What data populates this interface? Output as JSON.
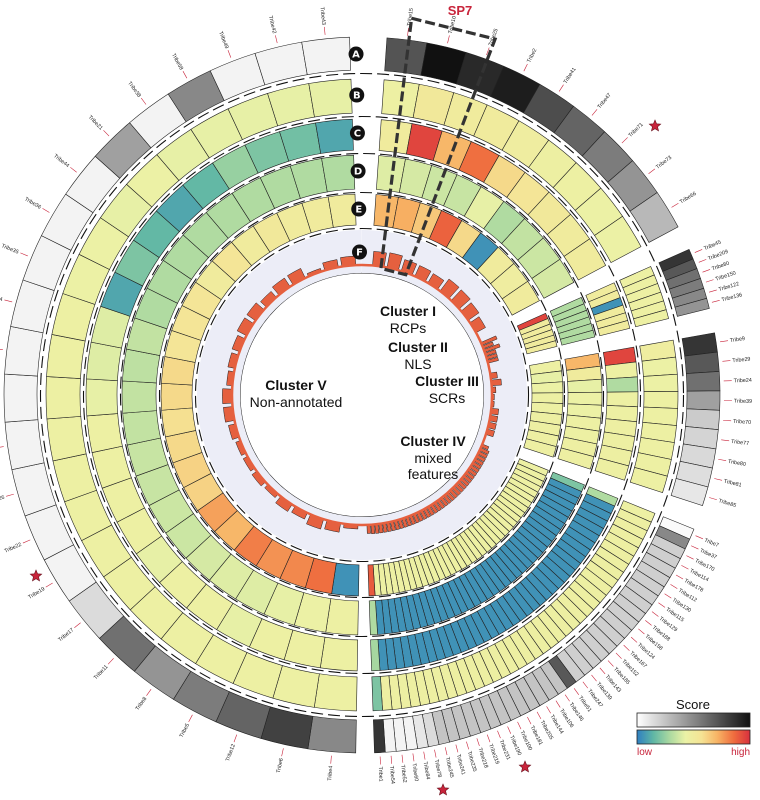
{
  "chart_data": {
    "type": "circos",
    "rings": [
      "A",
      "B",
      "C",
      "D",
      "E",
      "F"
    ],
    "clusters": [
      {
        "title": "Cluster I",
        "subtitle": "RCPs",
        "start": 0,
        "end": 36
      },
      {
        "title": "Cluster II",
        "subtitle": "NLS",
        "start": 38,
        "end": 42
      },
      {
        "title": "Cluster III",
        "subtitle": "SCRs",
        "start": 43,
        "end": 60
      },
      {
        "title": "Cluster IV",
        "subtitle": "mixed features",
        "start": 62,
        "end": 178
      },
      {
        "title": "Cluster V",
        "subtitle": "Non-annotated",
        "start": 181,
        "end": 358
      }
    ],
    "tribes": [
      {
        "name": "Tribe15",
        "a": 0.72,
        "b": 0.45,
        "c": 0.5,
        "d": 0.4,
        "e": 0.7
      },
      {
        "name": "Tribe10",
        "a": 1.0,
        "b": 0.52,
        "c": 0.95,
        "d": 0.38,
        "e": 0.72
      },
      {
        "name": "Tribe25",
        "a": 0.9,
        "b": 0.5,
        "c": 0.7,
        "d": 0.36,
        "e": 0.65
      },
      {
        "name": "Tribe2",
        "a": 0.95,
        "b": 0.5,
        "c": 0.85,
        "d": 0.35,
        "e": 0.88
      },
      {
        "name": "Tribe41",
        "a": 0.75,
        "b": 0.48,
        "c": 0.6,
        "d": 0.42,
        "e": 0.6
      },
      {
        "name": "Tribe47",
        "a": 0.65,
        "b": 0.46,
        "c": 0.55,
        "d": 0.3,
        "e": 0.05
      },
      {
        "name": "Tribe71",
        "a": 0.55,
        "b": 0.45,
        "c": 0.52,
        "d": 0.34,
        "e": 0.5
      },
      {
        "name": "Tribe73",
        "a": 0.45,
        "b": 0.44,
        "c": 0.5,
        "d": 0.36,
        "e": 0.48
      },
      {
        "name": "Tribe66",
        "a": 0.3,
        "b": 0.44,
        "c": 0.5,
        "d": 0.38,
        "e": 0.5
      },
      {
        "name": "Tribe45",
        "a": 0.85,
        "b": 0.45,
        "c": 0.5,
        "d": 0.3,
        "e": 0.95
      },
      {
        "name": "Tribe209",
        "a": 0.7,
        "b": 0.45,
        "c": 0.5,
        "d": 0.3,
        "e": 0.5
      },
      {
        "name": "Tribe80",
        "a": 0.6,
        "b": 0.45,
        "c": 0.05,
        "d": 0.3,
        "e": 0.5
      },
      {
        "name": "Tribe150",
        "a": 0.55,
        "b": 0.45,
        "c": 0.5,
        "d": 0.3,
        "e": 0.5
      },
      {
        "name": "Tribe122",
        "a": 0.5,
        "b": 0.45,
        "c": 0.5,
        "d": 0.3,
        "e": 0.5
      },
      {
        "name": "Tribe136",
        "a": 0.45,
        "b": 0.45,
        "c": 0.5,
        "d": 0.3,
        "e": 0.5
      },
      {
        "name": "Tribe9",
        "a": 0.85,
        "b": 0.48,
        "c": 0.95,
        "d": 0.7,
        "e": 0.45
      },
      {
        "name": "Tribe29",
        "a": 0.7,
        "b": 0.44,
        "c": 0.45,
        "d": 0.5,
        "e": 0.42
      },
      {
        "name": "Tribe24",
        "a": 0.6,
        "b": 0.44,
        "c": 0.3,
        "d": 0.42,
        "e": 0.44
      },
      {
        "name": "Tribe39",
        "a": 0.4,
        "b": 0.45,
        "c": 0.45,
        "d": 0.44,
        "e": 0.45
      },
      {
        "name": "Tribe70",
        "a": 0.22,
        "b": 0.45,
        "c": 0.45,
        "d": 0.44,
        "e": 0.45
      },
      {
        "name": "Tribe77",
        "a": 0.18,
        "b": 0.45,
        "c": 0.46,
        "d": 0.45,
        "e": 0.46
      },
      {
        "name": "Tribe80",
        "a": 0.16,
        "b": 0.45,
        "c": 0.46,
        "d": 0.45,
        "e": 0.46
      },
      {
        "name": "Tribe81",
        "a": 0.14,
        "b": 0.45,
        "c": 0.46,
        "d": 0.46,
        "e": 0.46
      },
      {
        "name": "Tribe85",
        "a": 0.1,
        "b": 0.45,
        "c": 0.46,
        "d": 0.46,
        "e": 0.46
      },
      {
        "name": "Tribe7",
        "a": 0.02,
        "b": 0.45,
        "c": 0.3,
        "d": 0.2,
        "e": 0.45
      },
      {
        "name": "Tribe37",
        "a": 0.5,
        "b": 0.46,
        "c": 0.05,
        "d": 0.05,
        "e": 0.45
      },
      {
        "name": "Tribe170",
        "a": 0.2,
        "b": 0.46,
        "c": 0.05,
        "d": 0.05,
        "e": 0.45
      },
      {
        "name": "Tribe114",
        "a": 0.2,
        "b": 0.46,
        "c": 0.05,
        "d": 0.05,
        "e": 0.45
      },
      {
        "name": "Tribe178",
        "a": 0.2,
        "b": 0.46,
        "c": 0.05,
        "d": 0.05,
        "e": 0.45
      },
      {
        "name": "Tribe112",
        "a": 0.2,
        "b": 0.46,
        "c": 0.05,
        "d": 0.05,
        "e": 0.45
      },
      {
        "name": "Tribe130",
        "a": 0.2,
        "b": 0.46,
        "c": 0.05,
        "d": 0.05,
        "e": 0.45
      },
      {
        "name": "Tribe115",
        "a": 0.2,
        "b": 0.46,
        "c": 0.05,
        "d": 0.05,
        "e": 0.45
      },
      {
        "name": "Tribe129",
        "a": 0.2,
        "b": 0.46,
        "c": 0.05,
        "d": 0.05,
        "e": 0.45
      },
      {
        "name": "Tribe188",
        "a": 0.2,
        "b": 0.46,
        "c": 0.05,
        "d": 0.05,
        "e": 0.45
      },
      {
        "name": "Tribe158",
        "a": 0.2,
        "b": 0.46,
        "c": 0.05,
        "d": 0.05,
        "e": 0.45
      },
      {
        "name": "Tribe124",
        "a": 0.2,
        "b": 0.46,
        "c": 0.05,
        "d": 0.05,
        "e": 0.45
      },
      {
        "name": "Tribe167",
        "a": 0.2,
        "b": 0.46,
        "c": 0.05,
        "d": 0.05,
        "e": 0.45
      },
      {
        "name": "Tribe152",
        "a": 0.2,
        "b": 0.46,
        "c": 0.05,
        "d": 0.05,
        "e": 0.45
      },
      {
        "name": "Tribe185",
        "a": 0.2,
        "b": 0.46,
        "c": 0.05,
        "d": 0.05,
        "e": 0.45
      },
      {
        "name": "Tribe143",
        "a": 0.2,
        "b": 0.46,
        "c": 0.05,
        "d": 0.05,
        "e": 0.45
      },
      {
        "name": "Tribe139",
        "a": 0.2,
        "b": 0.46,
        "c": 0.05,
        "d": 0.05,
        "e": 0.45
      },
      {
        "name": "Tribe247",
        "a": 0.2,
        "b": 0.46,
        "c": 0.05,
        "d": 0.05,
        "e": 0.45
      },
      {
        "name": "Tribe51",
        "a": 0.7,
        "b": 0.46,
        "c": 0.05,
        "d": 0.05,
        "e": 0.45
      },
      {
        "name": "Tribe146",
        "a": 0.25,
        "b": 0.46,
        "c": 0.05,
        "d": 0.05,
        "e": 0.45
      },
      {
        "name": "Tribe106",
        "a": 0.25,
        "b": 0.46,
        "c": 0.05,
        "d": 0.05,
        "e": 0.45
      },
      {
        "name": "Tribe144",
        "a": 0.25,
        "b": 0.46,
        "c": 0.05,
        "d": 0.05,
        "e": 0.45
      },
      {
        "name": "Tribe205",
        "a": 0.25,
        "b": 0.46,
        "c": 0.05,
        "d": 0.05,
        "e": 0.45
      },
      {
        "name": "Tribe181",
        "a": 0.25,
        "b": 0.46,
        "c": 0.05,
        "d": 0.05,
        "e": 0.45
      },
      {
        "name": "Tribe100",
        "a": 0.25,
        "b": 0.46,
        "c": 0.05,
        "d": 0.05,
        "e": 0.45
      },
      {
        "name": "Tribe190",
        "a": 0.25,
        "b": 0.46,
        "c": 0.05,
        "d": 0.05,
        "e": 0.45
      },
      {
        "name": "Tribe231",
        "a": 0.25,
        "b": 0.46,
        "c": 0.05,
        "d": 0.05,
        "e": 0.45
      },
      {
        "name": "Tribe219",
        "a": 0.25,
        "b": 0.46,
        "c": 0.05,
        "d": 0.05,
        "e": 0.45
      },
      {
        "name": "Tribe218",
        "a": 0.25,
        "b": 0.46,
        "c": 0.05,
        "d": 0.05,
        "e": 0.45
      },
      {
        "name": "Tribe235",
        "a": 0.25,
        "b": 0.46,
        "c": 0.05,
        "d": 0.05,
        "e": 0.45
      },
      {
        "name": "Tribe241",
        "a": 0.25,
        "b": 0.46,
        "c": 0.05,
        "d": 0.05,
        "e": 0.45
      },
      {
        "name": "Tribe245",
        "a": 0.25,
        "b": 0.46,
        "c": 0.05,
        "d": 0.05,
        "e": 0.45
      },
      {
        "name": "Tribe78",
        "a": 0.15,
        "b": 0.46,
        "c": 0.05,
        "d": 0.05,
        "e": 0.45
      },
      {
        "name": "Tribe84",
        "a": 0.1,
        "b": 0.46,
        "c": 0.05,
        "d": 0.05,
        "e": 0.45
      },
      {
        "name": "Tribe60",
        "a": 0.05,
        "b": 0.46,
        "c": 0.05,
        "d": 0.05,
        "e": 0.45
      },
      {
        "name": "Tribe52",
        "a": 0.05,
        "b": 0.46,
        "c": 0.05,
        "d": 0.05,
        "e": 0.45
      },
      {
        "name": "Tribe54",
        "a": 0.05,
        "b": 0.46,
        "c": 0.05,
        "d": 0.05,
        "e": 0.45
      },
      {
        "name": "Tribe1",
        "a": 0.85,
        "b": 0.2,
        "c": 0.28,
        "d": 0.3,
        "e": 0.9
      },
      {
        "name": "Tribe4",
        "a": 0.5,
        "b": 0.45,
        "c": 0.45,
        "d": 0.45,
        "e": 0.05
      },
      {
        "name": "Tribe6",
        "a": 0.8,
        "b": 0.45,
        "c": 0.45,
        "d": 0.44,
        "e": 0.85
      },
      {
        "name": "Tribe12",
        "a": 0.65,
        "b": 0.45,
        "c": 0.45,
        "d": 0.42,
        "e": 0.8
      },
      {
        "name": "Tribe5",
        "a": 0.55,
        "b": 0.45,
        "c": 0.42,
        "d": 0.4,
        "e": 0.78
      },
      {
        "name": "Tribe8",
        "a": 0.45,
        "b": 0.45,
        "c": 0.45,
        "d": 0.4,
        "e": 0.82
      },
      {
        "name": "Tribe11",
        "a": 0.6,
        "b": 0.45,
        "c": 0.45,
        "d": 0.38,
        "e": 0.7
      },
      {
        "name": "Tribe17",
        "a": 0.15,
        "b": 0.45,
        "c": 0.42,
        "d": 0.36,
        "e": 0.75
      },
      {
        "name": "Tribe19",
        "a": 0.05,
        "b": 0.45,
        "c": 0.45,
        "d": 0.36,
        "e": 0.62
      },
      {
        "name": "Tribe22",
        "a": 0.05,
        "b": 0.45,
        "c": 0.45,
        "d": 0.35,
        "e": 0.62
      },
      {
        "name": "Tribe26",
        "a": 0.05,
        "b": 0.45,
        "c": 0.45,
        "d": 0.35,
        "e": 0.6
      },
      {
        "name": "Tribe28",
        "a": 0.05,
        "b": 0.45,
        "c": 0.45,
        "d": 0.34,
        "e": 0.58
      },
      {
        "name": "Tribe30",
        "a": 0.05,
        "b": 0.45,
        "c": 0.42,
        "d": 0.34,
        "e": 0.6
      },
      {
        "name": "Tribe32",
        "a": 0.05,
        "b": 0.45,
        "c": 0.4,
        "d": 0.33,
        "e": 0.6
      },
      {
        "name": "Tribe34",
        "a": 0.05,
        "b": 0.45,
        "c": 0.4,
        "d": 0.34,
        "e": 0.55
      },
      {
        "name": "Tribe35",
        "a": 0.05,
        "b": 0.44,
        "c": 0.1,
        "d": 0.3,
        "e": 0.55
      },
      {
        "name": "Tribe36",
        "a": 0.05,
        "b": 0.44,
        "c": 0.2,
        "d": 0.3,
        "e": 0.55
      },
      {
        "name": "Tribe44",
        "a": 0.05,
        "b": 0.42,
        "c": 0.15,
        "d": 0.3,
        "e": 0.5
      },
      {
        "name": "Tribe21",
        "a": 0.4,
        "b": 0.44,
        "c": 0.1,
        "d": 0.3,
        "e": 0.55
      },
      {
        "name": "Tribe38",
        "a": 0.05,
        "b": 0.42,
        "c": 0.15,
        "d": 0.3,
        "e": 0.5
      },
      {
        "name": "Tribe58",
        "a": 0.5,
        "b": 0.42,
        "c": 0.25,
        "d": 0.3,
        "e": 0.52
      },
      {
        "name": "Tribe49",
        "a": 0.05,
        "b": 0.42,
        "c": 0.2,
        "d": 0.3,
        "e": 0.5
      },
      {
        "name": "Tribe42",
        "a": 0.05,
        "b": 0.42,
        "c": 0.18,
        "d": 0.3,
        "e": 0.5
      },
      {
        "name": "Tribe43",
        "a": 0.05,
        "b": 0.42,
        "c": 0.1,
        "d": 0.3,
        "e": 0.5
      }
    ],
    "highlight": {
      "label": "SP7"
    },
    "legend": {
      "title": "Score",
      "low": "low",
      "high": "high"
    },
    "colors": {
      "grey_low": "#ffffff",
      "grey_high": "#111111",
      "spectral": [
        "#2f7fc1",
        "#5fb6a5",
        "#a9d8a0",
        "#ebf2a6",
        "#f5e394",
        "#f7b264",
        "#ef6c3e",
        "#d8303e"
      ],
      "hist": "#e5603f",
      "center_fill": "#ecedf7"
    }
  }
}
